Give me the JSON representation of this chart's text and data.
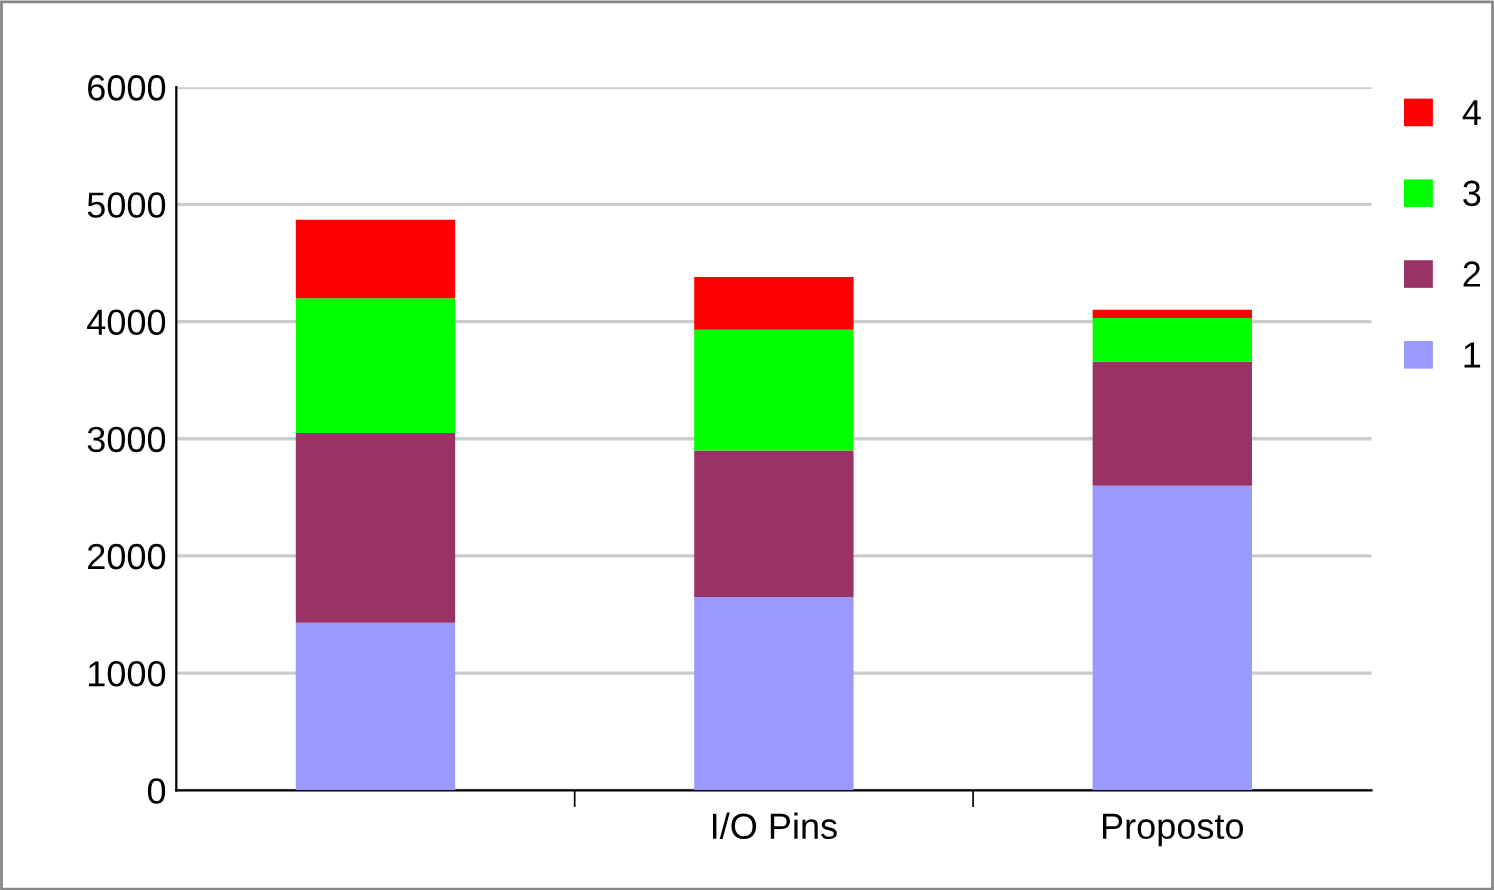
{
  "chart_data": {
    "type": "bar",
    "stacked": true,
    "categories": [
      null,
      "I/O Pins",
      "Proposto"
    ],
    "series": [
      {
        "name": "1",
        "color": "#9999ff",
        "values": [
          1430,
          1650,
          2600
        ]
      },
      {
        "name": "2",
        "color": "#993366",
        "values": [
          1620,
          1250,
          1060
        ]
      },
      {
        "name": "3",
        "color": "#00ff00",
        "values": [
          1150,
          1030,
          370
        ]
      },
      {
        "name": "4",
        "color": "#ff0000",
        "values": [
          670,
          450,
          70
        ]
      }
    ],
    "ylim": [
      0,
      6000
    ],
    "yticks": [
      0,
      1000,
      2000,
      3000,
      4000,
      5000,
      6000
    ],
    "grid": "y",
    "legend": "top right"
  }
}
